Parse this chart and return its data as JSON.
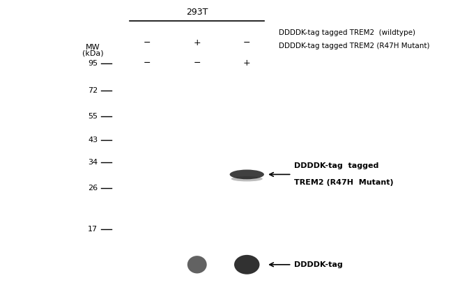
{
  "fig_bg": "#ffffff",
  "gel_bg": "#c8c8c8",
  "ctrl_bg": "#b8b8b8",
  "title_293T": "293T",
  "lane_labels_row1": [
    "−",
    "+",
    "−"
  ],
  "lane_labels_row2": [
    "−",
    "−",
    "+"
  ],
  "row1_label": "DDDDK-tag tagged TREM2  (wildtype)",
  "row2_label": "DDDDK-tag tagged TREM2 (R47H Mutant)",
  "mw_label_line1": "MW",
  "mw_label_line2": "(kDa)",
  "mw_marks": [
    95,
    72,
    55,
    43,
    34,
    26,
    17
  ],
  "band_annotation_line1": "DDDDK-tag  tagged",
  "band_annotation_line2": "TREM2 (R47H  Mutant)",
  "control_annotation": "DDDDK-tag",
  "band_kda": 30,
  "log_min_kda": 15,
  "log_max_kda": 120
}
